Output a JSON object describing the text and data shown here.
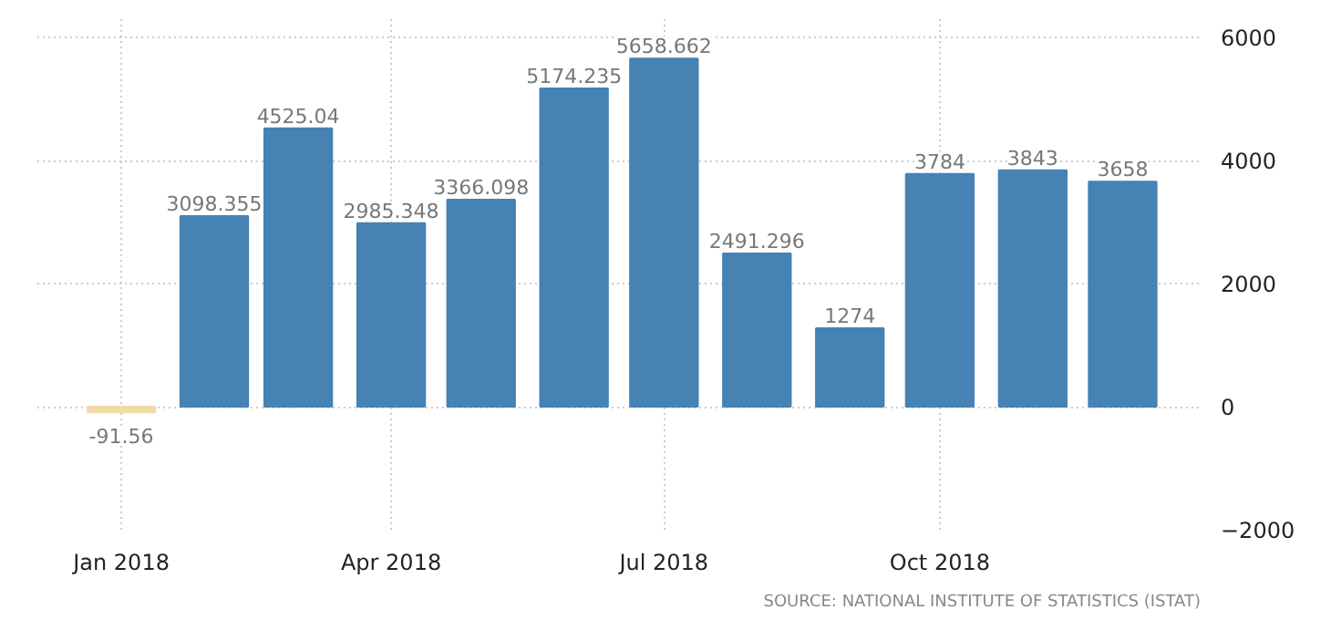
{
  "chart_data": {
    "type": "bar",
    "x": [
      "2018-01",
      "2018-02",
      "2018-03",
      "2018-04",
      "2018-05",
      "2018-06",
      "2018-07",
      "2018-08",
      "2018-09",
      "2018-10",
      "2018-11",
      "2018-12"
    ],
    "values": [
      -91.56,
      3098.355,
      4525.04,
      2985.348,
      3366.098,
      5174.235,
      5658.662,
      2491.296,
      1274,
      3784,
      3843,
      3658
    ],
    "colors": [
      "#f2d9a8",
      "#4682b4",
      "#4682b4",
      "#4682b4",
      "#4682b4",
      "#4682b4",
      "#4682b4",
      "#4682b4",
      "#4682b4",
      "#4682b4",
      "#4682b4",
      "#4682b4"
    ],
    "data_labels": true,
    "xlim": [
      "2017-12-04",
      "2018-12-27"
    ],
    "xticks": [
      {
        "value": "2018-01",
        "label": "Jan 2018"
      },
      {
        "value": "2018-04",
        "label": "Apr 2018"
      },
      {
        "value": "2018-07",
        "label": "Jul 2018"
      },
      {
        "value": "2018-10",
        "label": "Oct 2018"
      }
    ],
    "ylim": [
      -2000,
      6300
    ],
    "yticks": [
      -2000,
      0,
      2000,
      4000,
      6000
    ],
    "grid": true,
    "annotations": [
      "SOURCE: NATIONAL INSTITUTE OF STATISTICS (ISTAT)"
    ]
  }
}
